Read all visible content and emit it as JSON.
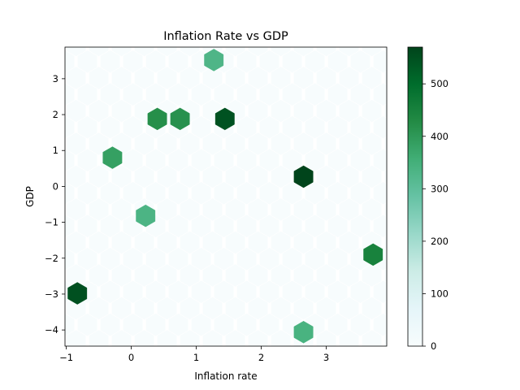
{
  "chart_data": {
    "type": "hexbin",
    "title": "Inflation Rate vs GDP",
    "xlabel": "Inflation rate",
    "ylabel": "GDP",
    "xlim": [
      -1.02,
      3.93
    ],
    "ylim": [
      -4.45,
      3.88
    ],
    "xticks": [
      -1,
      0,
      1,
      2,
      3
    ],
    "yticks": [
      -4,
      -3,
      -2,
      -1,
      0,
      1,
      2,
      3
    ],
    "cmap": "BuGn",
    "colorbar": {
      "min": 0,
      "max": 570,
      "ticks": [
        0,
        100,
        200,
        300,
        400,
        500
      ]
    },
    "points": [
      {
        "x": 1.27,
        "y": 3.52,
        "count": 330
      },
      {
        "x": 0.4,
        "y": 1.88,
        "count": 420
      },
      {
        "x": 0.75,
        "y": 1.88,
        "count": 415
      },
      {
        "x": 1.44,
        "y": 1.88,
        "count": 545
      },
      {
        "x": -0.29,
        "y": 0.8,
        "count": 385
      },
      {
        "x": 2.65,
        "y": 0.27,
        "count": 570
      },
      {
        "x": 0.22,
        "y": -0.82,
        "count": 335
      },
      {
        "x": 3.72,
        "y": -1.9,
        "count": 450
      },
      {
        "x": -0.83,
        "y": -2.98,
        "count": 550
      },
      {
        "x": 2.65,
        "y": -4.06,
        "count": 340
      }
    ]
  }
}
